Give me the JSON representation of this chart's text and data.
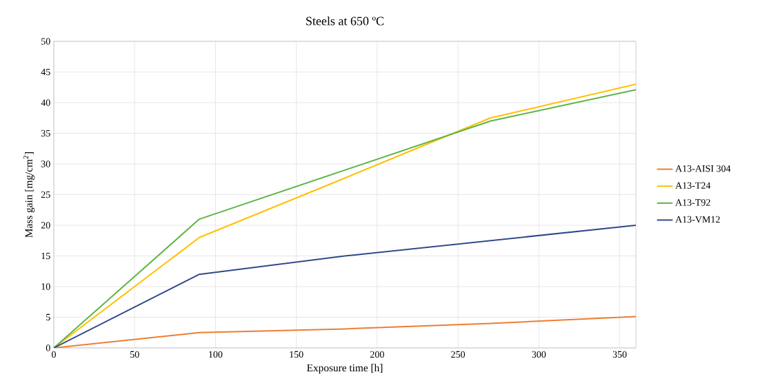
{
  "chart_data": {
    "type": "line",
    "title": "Steels at 650 ºC",
    "xlabel": "Exposure time [h]",
    "ylabel": "Mass gain [mg/cm$^{2}$]",
    "x": [
      0,
      90,
      180,
      270,
      360
    ],
    "series": [
      {
        "name": "A13-AISI 304",
        "color": "#ed7d31",
        "values": [
          0,
          2.5,
          3.1,
          4.0,
          5.1
        ]
      },
      {
        "name": "A13-T24",
        "color": "#ffc000",
        "values": [
          0,
          18,
          27.7,
          37.5,
          43
        ]
      },
      {
        "name": "A13-T92",
        "color": "#5cb443",
        "values": [
          0,
          21,
          29,
          37,
          42.1
        ]
      },
      {
        "name": "A13-VM12",
        "color": "#2f4a8a",
        "values": [
          0,
          12,
          15,
          17.5,
          20
        ]
      }
    ],
    "xlim": [
      0,
      360
    ],
    "ylim": [
      0,
      50
    ],
    "xticks": [
      0,
      50,
      100,
      150,
      200,
      250,
      300,
      350
    ],
    "yticks": [
      0,
      5,
      10,
      15,
      20,
      25,
      30,
      35,
      40,
      45,
      50
    ],
    "grid": true,
    "legend": "right",
    "marker": "none",
    "line_style": "solid"
  }
}
